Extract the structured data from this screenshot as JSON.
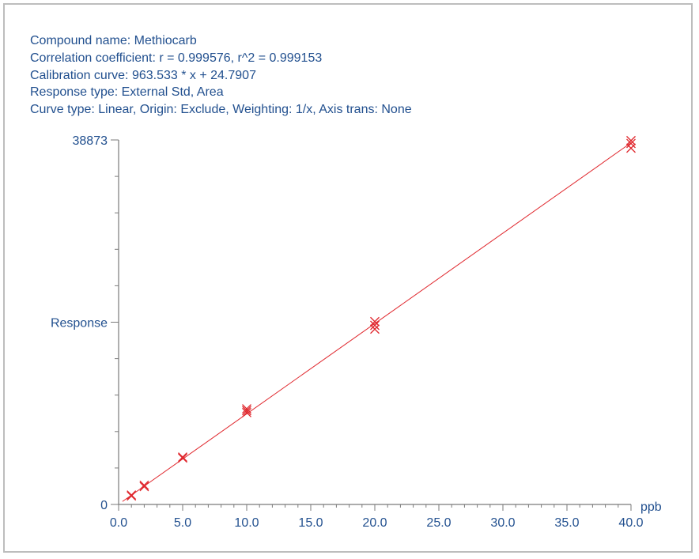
{
  "header": {
    "compound": "Compound name: Methiocarb",
    "correlation": "Correlation coefficient: r = 0.999576, r^2 = 0.999153",
    "calibration": "Calibration curve: 963.533 * x + 24.7907",
    "response_type": "Response type: External Std, Area",
    "curve_type": "Curve type: Linear, Origin: Exclude, Weighting: 1/x, Axis trans: None"
  },
  "colors": {
    "text": "#22508f",
    "axis": "#7a7a7a",
    "data": "#e0282e",
    "frame": "#bdbdbd"
  },
  "chart_data": {
    "type": "scatter",
    "xlabel": "ppb",
    "ylabel": "Response",
    "xlim": [
      0,
      40
    ],
    "ylim": [
      0,
      38873
    ],
    "x_tick_labels": [
      "0.0",
      "5.0",
      "10.0",
      "15.0",
      "20.0",
      "25.0",
      "30.0",
      "35.0",
      "40.0"
    ],
    "x_ticks": [
      0,
      5,
      10,
      15,
      20,
      25,
      30,
      35,
      40
    ],
    "y_tick_labels": [
      "0",
      "38873"
    ],
    "y_ticks": [
      0,
      38873
    ],
    "fit_line": {
      "slope": 963.533,
      "intercept": 24.7907,
      "x_range": [
        0,
        40
      ]
    },
    "points": [
      {
        "x": 1,
        "y": 900
      },
      {
        "x": 1,
        "y": 1000
      },
      {
        "x": 2,
        "y": 1900
      },
      {
        "x": 2,
        "y": 2050
      },
      {
        "x": 5,
        "y": 4950
      },
      {
        "x": 5,
        "y": 5050
      },
      {
        "x": 10,
        "y": 9800
      },
      {
        "x": 10,
        "y": 10000
      },
      {
        "x": 10,
        "y": 10200
      },
      {
        "x": 20,
        "y": 18700
      },
      {
        "x": 20,
        "y": 19100
      },
      {
        "x": 20,
        "y": 19500
      },
      {
        "x": 40,
        "y": 38000
      },
      {
        "x": 40,
        "y": 38500
      },
      {
        "x": 40,
        "y": 38800
      }
    ],
    "grid": false
  }
}
